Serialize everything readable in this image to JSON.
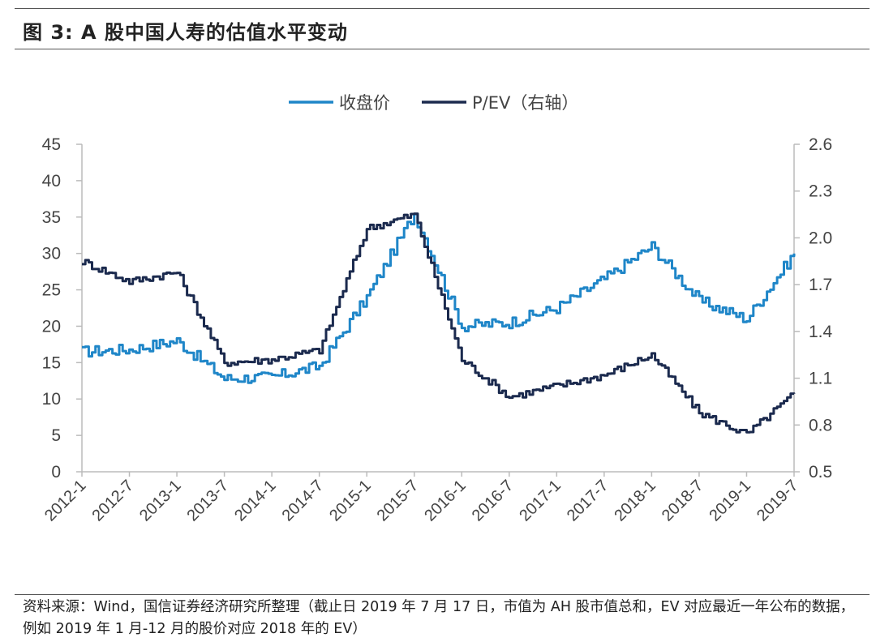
{
  "title": "图 3:  A 股中国人寿的估值水平变动",
  "source": "资料来源：Wind，国信证券经济研究所整理（截止日 2019 年 7 月 17 日，市值为 AH 股市值总和，EV 对应最近一年公布的数据，例如 2019 年 1 月-12 月的股价对应 2018 年的 EV）",
  "colors": {
    "close": "#1f86c8",
    "pev": "#1b2a4e",
    "axis": "#bbbbbb"
  },
  "chart_data": {
    "type": "line",
    "x": [
      "2012-1",
      "2012-7",
      "2013-1",
      "2013-7",
      "2014-1",
      "2014-7",
      "2015-1",
      "2015-7",
      "2016-1",
      "2016-7",
      "2017-1",
      "2017-7",
      "2018-1",
      "2018-7",
      "2019-1",
      "2019-7"
    ],
    "x_ticks": [
      "2012-1",
      "2012-7",
      "2013-1",
      "2013-7",
      "2014-1",
      "2014-7",
      "2015-1",
      "2015-7",
      "2016-1",
      "2016-7",
      "2017-1",
      "2017-7",
      "2018-1",
      "2018-7",
      "2019-1",
      "2019-7"
    ],
    "y_left_ticks": [
      "0",
      "5",
      "10",
      "15",
      "20",
      "25",
      "30",
      "35",
      "40",
      "45"
    ],
    "y_right_ticks": [
      "0.5",
      "0.8",
      "1.1",
      "1.4",
      "1.7",
      "2.0",
      "2.3",
      "2.6"
    ],
    "ylim_left": [
      0,
      45
    ],
    "ylim_right": [
      0.5,
      2.6
    ],
    "legend_position": "top-center",
    "series": [
      {
        "name": "收盘价",
        "axis": "left",
        "values": [
          16.5,
          16.8,
          18.0,
          12.8,
          13.0,
          14.5,
          24.0,
          35.5,
          20.0,
          20.5,
          22.5,
          26.5,
          31.0,
          23.5,
          21.0,
          30.0
        ]
      },
      {
        "name": "P/EV（右轴）",
        "axis": "right",
        "values": [
          1.85,
          1.72,
          1.78,
          1.2,
          1.22,
          1.28,
          2.06,
          2.15,
          1.22,
          0.98,
          1.05,
          1.12,
          1.25,
          0.88,
          0.74,
          1.0
        ]
      }
    ]
  }
}
